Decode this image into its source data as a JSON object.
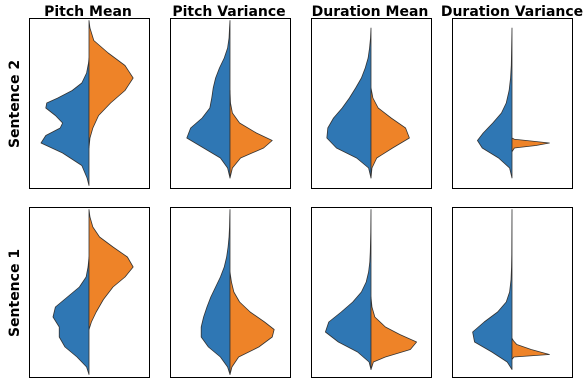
{
  "chart_data": {
    "type": "violin-grid",
    "columns": [
      "Pitch Mean",
      "Pitch Variance",
      "Duration Mean",
      "Duration Variance"
    ],
    "rows": [
      "Sentence 2",
      "Sentence 1"
    ],
    "colors": {
      "left": "#2f77b4",
      "right": "#ee8328"
    },
    "panels": [
      [
        {
          "left": [
            [
              -3.3,
              0
            ],
            [
              -3,
              0.04
            ],
            [
              -2.5,
              0.15
            ],
            [
              -2,
              0.55
            ],
            [
              -1.6,
              1.0
            ],
            [
              -1.3,
              0.9
            ],
            [
              -1.0,
              0.6
            ],
            [
              -0.8,
              0.55
            ],
            [
              -0.5,
              0.7
            ],
            [
              -0.2,
              0.9
            ],
            [
              0,
              0.88
            ],
            [
              0.2,
              0.65
            ],
            [
              0.5,
              0.35
            ],
            [
              0.8,
              0.15
            ],
            [
              1.2,
              0.05
            ],
            [
              1.6,
              0.01
            ],
            [
              1.8,
              0
            ]
          ],
          "right": [
            [
              -1.8,
              0
            ],
            [
              -1.4,
              0.02
            ],
            [
              -1,
              0.08
            ],
            [
              -0.5,
              0.2
            ],
            [
              0,
              0.45
            ],
            [
              0.5,
              0.75
            ],
            [
              1.0,
              0.92
            ],
            [
              1.5,
              0.75
            ],
            [
              2.0,
              0.4
            ],
            [
              2.5,
              0.1
            ],
            [
              3,
              0.02
            ],
            [
              3.3,
              0
            ]
          ]
        },
        {
          "left": [
            [
              -3,
              0
            ],
            [
              -2.6,
              0.05
            ],
            [
              -2.2,
              0.2
            ],
            [
              -1.8,
              0.55
            ],
            [
              -1.4,
              0.9
            ],
            [
              -1.0,
              0.82
            ],
            [
              -0.6,
              0.58
            ],
            [
              -0.2,
              0.42
            ],
            [
              0.2,
              0.38
            ],
            [
              0.6,
              0.35
            ],
            [
              1.0,
              0.3
            ],
            [
              1.4,
              0.22
            ],
            [
              1.8,
              0.12
            ],
            [
              2.2,
              0.05
            ],
            [
              2.6,
              0.02
            ],
            [
              3.0,
              0.01
            ],
            [
              3.3,
              0
            ]
          ],
          "right": [
            [
              -3,
              0
            ],
            [
              -2.6,
              0.05
            ],
            [
              -2.2,
              0.22
            ],
            [
              -1.8,
              0.7
            ],
            [
              -1.5,
              0.88
            ],
            [
              -1.2,
              0.55
            ],
            [
              -0.8,
              0.2
            ],
            [
              -0.4,
              0.05
            ],
            [
              0,
              0.01
            ],
            [
              0.5,
              0
            ]
          ]
        },
        {
          "left": [
            [
              -3,
              0
            ],
            [
              -2.6,
              0.05
            ],
            [
              -2.2,
              0.3
            ],
            [
              -1.8,
              0.72
            ],
            [
              -1.4,
              0.92
            ],
            [
              -1.0,
              0.9
            ],
            [
              -0.6,
              0.78
            ],
            [
              -0.2,
              0.6
            ],
            [
              0.2,
              0.45
            ],
            [
              0.6,
              0.32
            ],
            [
              1.0,
              0.2
            ],
            [
              1.4,
              0.12
            ],
            [
              1.8,
              0.06
            ],
            [
              2.2,
              0.03
            ],
            [
              2.6,
              0.01
            ],
            [
              3.0,
              0
            ]
          ],
          "right": [
            [
              -3,
              0
            ],
            [
              -2.6,
              0.02
            ],
            [
              -2.2,
              0.12
            ],
            [
              -1.8,
              0.45
            ],
            [
              -1.4,
              0.8
            ],
            [
              -1.0,
              0.72
            ],
            [
              -0.6,
              0.42
            ],
            [
              -0.2,
              0.15
            ],
            [
              0.2,
              0.04
            ],
            [
              0.6,
              0
            ]
          ]
        },
        {
          "left": [
            [
              -3,
              0
            ],
            [
              -2.6,
              0.05
            ],
            [
              -2.2,
              0.28
            ],
            [
              -1.8,
              0.62
            ],
            [
              -1.5,
              0.72
            ],
            [
              -1.2,
              0.6
            ],
            [
              -0.8,
              0.4
            ],
            [
              -0.4,
              0.22
            ],
            [
              0,
              0.12
            ],
            [
              0.5,
              0.06
            ],
            [
              1.0,
              0.03
            ],
            [
              1.5,
              0.015
            ],
            [
              2.0,
              0.01
            ],
            [
              2.5,
              0.005
            ],
            [
              3.0,
              0
            ]
          ],
          "right": [
            [
              -1.95,
              0
            ],
            [
              -1.8,
              0.05
            ],
            [
              -1.7,
              0.5
            ],
            [
              -1.6,
              0.78
            ],
            [
              -1.5,
              0.3
            ],
            [
              -1.45,
              0.05
            ],
            [
              -1.4,
              0
            ]
          ]
        }
      ],
      [
        {
          "left": [
            [
              -3.3,
              0
            ],
            [
              -3,
              0.05
            ],
            [
              -2.6,
              0.25
            ],
            [
              -2.2,
              0.5
            ],
            [
              -1.8,
              0.62
            ],
            [
              -1.4,
              0.62
            ],
            [
              -1.0,
              0.75
            ],
            [
              -0.6,
              0.7
            ],
            [
              -0.2,
              0.45
            ],
            [
              0.2,
              0.2
            ],
            [
              0.6,
              0.06
            ],
            [
              1.0,
              0.02
            ],
            [
              1.4,
              0
            ]
          ],
          "right": [
            [
              -1.5,
              0
            ],
            [
              -1.2,
              0.05
            ],
            [
              -0.8,
              0.15
            ],
            [
              -0.3,
              0.3
            ],
            [
              0.2,
              0.5
            ],
            [
              0.6,
              0.75
            ],
            [
              1.0,
              0.92
            ],
            [
              1.4,
              0.8
            ],
            [
              1.8,
              0.5
            ],
            [
              2.2,
              0.22
            ],
            [
              2.6,
              0.08
            ],
            [
              3.0,
              0.02
            ],
            [
              3.3,
              0
            ]
          ]
        },
        {
          "left": [
            [
              -3.3,
              0
            ],
            [
              -3,
              0.05
            ],
            [
              -2.6,
              0.2
            ],
            [
              -2.2,
              0.45
            ],
            [
              -1.8,
              0.6
            ],
            [
              -1.4,
              0.6
            ],
            [
              -1.0,
              0.55
            ],
            [
              -0.6,
              0.48
            ],
            [
              -0.2,
              0.4
            ],
            [
              0.2,
              0.3
            ],
            [
              0.6,
              0.2
            ],
            [
              1.0,
              0.12
            ],
            [
              1.4,
              0.07
            ],
            [
              1.8,
              0.04
            ],
            [
              2.2,
              0.02
            ],
            [
              2.6,
              0.01
            ],
            [
              3.0,
              0.005
            ],
            [
              3.3,
              0
            ]
          ],
          "right": [
            [
              -3.3,
              0
            ],
            [
              -3,
              0.04
            ],
            [
              -2.6,
              0.18
            ],
            [
              -2.2,
              0.6
            ],
            [
              -1.8,
              0.88
            ],
            [
              -1.5,
              0.92
            ],
            [
              -1.2,
              0.72
            ],
            [
              -0.8,
              0.42
            ],
            [
              -0.4,
              0.2
            ],
            [
              0,
              0.08
            ],
            [
              0.4,
              0.03
            ],
            [
              0.8,
              0
            ]
          ]
        },
        {
          "left": [
            [
              -3.1,
              0
            ],
            [
              -2.8,
              0.04
            ],
            [
              -2.4,
              0.28
            ],
            [
              -2.0,
              0.68
            ],
            [
              -1.6,
              0.95
            ],
            [
              -1.2,
              0.88
            ],
            [
              -0.8,
              0.62
            ],
            [
              -0.4,
              0.38
            ],
            [
              0,
              0.2
            ],
            [
              0.4,
              0.1
            ],
            [
              0.8,
              0.05
            ],
            [
              1.2,
              0.025
            ],
            [
              1.6,
              0.015
            ],
            [
              2.0,
              0.01
            ],
            [
              2.4,
              0.005
            ],
            [
              3.3,
              0
            ]
          ],
          "right": [
            [
              -3.1,
              0
            ],
            [
              -2.8,
              0.05
            ],
            [
              -2.6,
              0.3
            ],
            [
              -2.3,
              0.82
            ],
            [
              -2.0,
              0.95
            ],
            [
              -1.7,
              0.6
            ],
            [
              -1.4,
              0.3
            ],
            [
              -1.0,
              0.08
            ],
            [
              -0.6,
              0.02
            ],
            [
              -0.2,
              0
            ]
          ]
        },
        {
          "left": [
            [
              -3.1,
              0
            ],
            [
              -2.8,
              0.1
            ],
            [
              -2.4,
              0.42
            ],
            [
              -2.0,
              0.78
            ],
            [
              -1.6,
              0.82
            ],
            [
              -1.2,
              0.58
            ],
            [
              -0.8,
              0.3
            ],
            [
              -0.4,
              0.12
            ],
            [
              0,
              0.05
            ],
            [
              0.5,
              0.02
            ],
            [
              1.0,
              0.01
            ],
            [
              1.5,
              0.005
            ],
            [
              3.3,
              0
            ]
          ],
          "right": [
            [
              -2.7,
              0
            ],
            [
              -2.6,
              0.04
            ],
            [
              -2.5,
              0.78
            ],
            [
              -2.3,
              0.4
            ],
            [
              -2.1,
              0.1
            ],
            [
              -1.95,
              0.03
            ],
            [
              -1.85,
              0
            ]
          ]
        }
      ]
    ],
    "ylim": [
      -3.4,
      3.4
    ],
    "grid": false,
    "legend": "none"
  }
}
